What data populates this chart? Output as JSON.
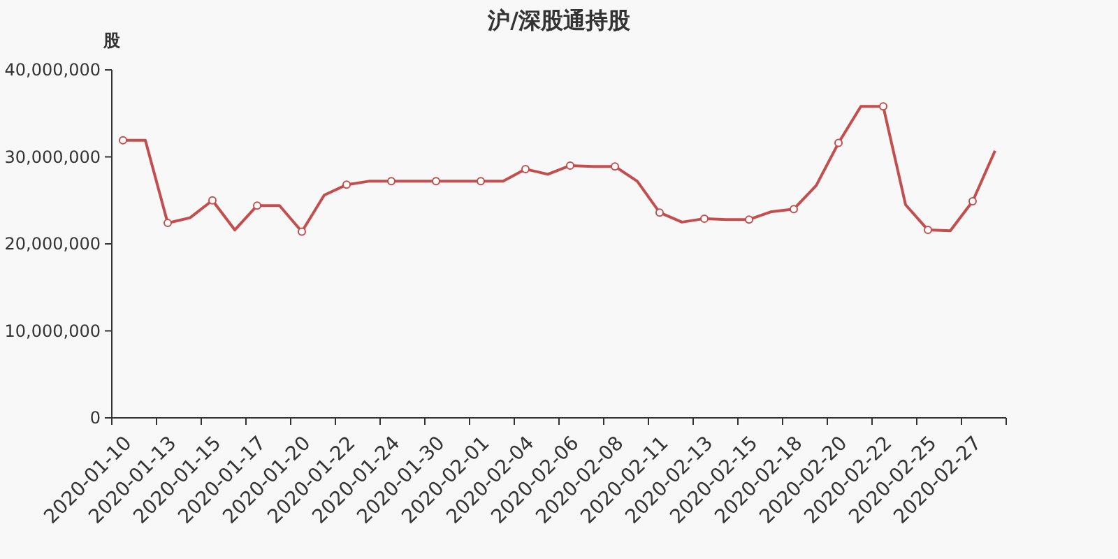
{
  "chart_data": {
    "type": "line",
    "title": "沪/深股通持股",
    "ylabel": "股",
    "categories": [
      "2020-01-10",
      null,
      "2020-01-13",
      null,
      "2020-01-15",
      null,
      "2020-01-17",
      null,
      "2020-01-20",
      null,
      "2020-01-22",
      null,
      "2020-01-24",
      null,
      "2020-01-30",
      null,
      "2020-02-01",
      null,
      "2020-02-04",
      null,
      "2020-02-06",
      null,
      "2020-02-08",
      null,
      "2020-02-11",
      null,
      "2020-02-13",
      null,
      "2020-02-15",
      null,
      "2020-02-18",
      null,
      "2020-02-20",
      null,
      "2020-02-22",
      null,
      "2020-02-25",
      null,
      "2020-02-27",
      null
    ],
    "series": [
      {
        "color": "#c44e4e",
        "values": [
          31900000,
          31900000,
          22400000,
          23000000,
          25000000,
          21600000,
          24400000,
          24400000,
          21400000,
          25600000,
          26800000,
          27200000,
          27200000,
          27200000,
          27200000,
          27200000,
          27200000,
          27200000,
          28600000,
          28000000,
          29000000,
          28900000,
          28900000,
          27200000,
          23600000,
          22500000,
          22900000,
          22800000,
          22800000,
          23700000,
          24000000,
          26700000,
          31600000,
          35800000,
          35800000,
          24500000,
          21600000,
          21500000,
          24900000,
          30700000
        ]
      }
    ],
    "ylim": [
      0,
      40000000
    ],
    "yticks": [
      {
        "value": 0,
        "label": "0"
      },
      {
        "value": 10000000,
        "label": "10,000,000"
      },
      {
        "value": 20000000,
        "label": "20,000,000"
      },
      {
        "value": 30000000,
        "label": "30,000,000"
      },
      {
        "value": 40000000,
        "label": "40,000,000"
      }
    ],
    "grid": false,
    "marker": "circle",
    "line_style": "solid"
  }
}
